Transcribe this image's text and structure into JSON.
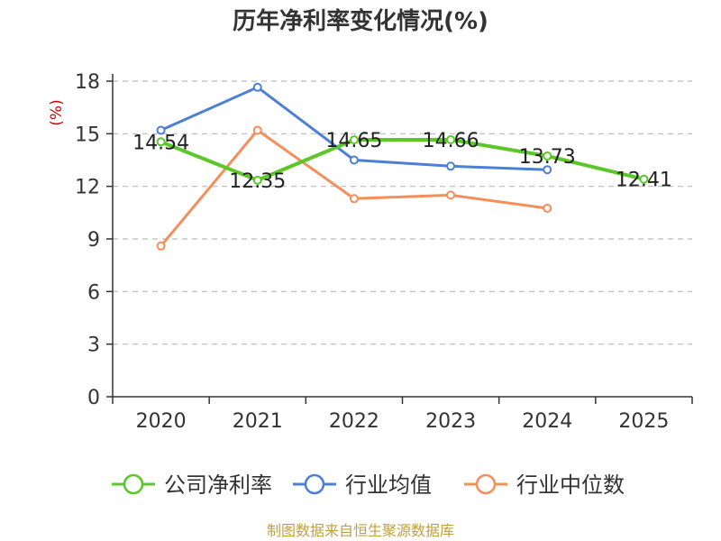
{
  "chart_data": {
    "type": "line",
    "title": "历年净利率变化情况(%)",
    "ylabel": "(%)",
    "xlabel": "",
    "categories": [
      "2020",
      "2021",
      "2022",
      "2023",
      "2024",
      "2025"
    ],
    "yticks": [
      0,
      3,
      6,
      9,
      12,
      15,
      18
    ],
    "ylim": [
      0,
      18
    ],
    "grid": true,
    "legend_position": "bottom",
    "series": [
      {
        "name": "公司净利率",
        "color": "#5cc728",
        "values": [
          14.54,
          12.35,
          14.65,
          14.66,
          13.73,
          12.41
        ],
        "labels": [
          "14.54",
          "12.35",
          "14.65",
          "14.66",
          "13.73",
          "12.41"
        ]
      },
      {
        "name": "行业均值",
        "color": "#4e7fd6",
        "values": [
          15.2,
          17.65,
          13.5,
          13.15,
          12.95,
          null
        ]
      },
      {
        "name": "行业中位数",
        "color": "#f48e5a",
        "values": [
          8.6,
          15.2,
          11.3,
          11.5,
          10.75,
          null
        ]
      }
    ],
    "source": "制图数据来自恒生聚源数据库"
  }
}
